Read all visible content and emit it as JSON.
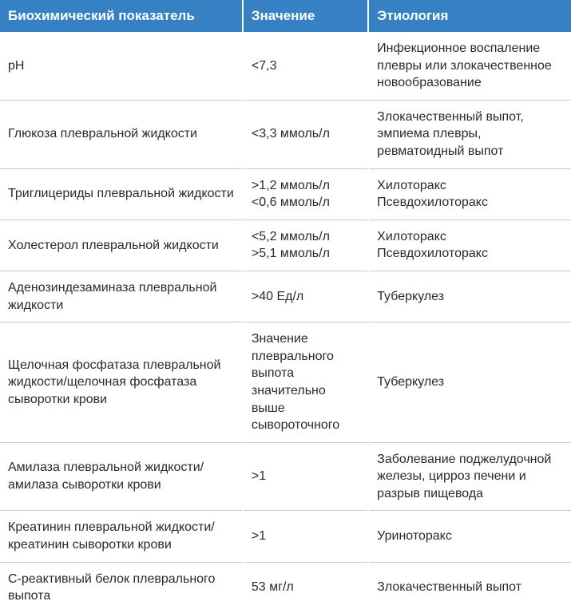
{
  "table": {
    "type": "table",
    "header_bg": "#3681c3",
    "header_text_color": "#ffffff",
    "border_color": "#c9c9c9",
    "text_color": "#2a2a2a",
    "font_size_header": 17,
    "font_size_body": 16,
    "columns": [
      {
        "label": "Биохимический показатель",
        "width": "42.5%"
      },
      {
        "label": "Значение",
        "width": "22%"
      },
      {
        "label": "Этиология",
        "width": "35.5%"
      }
    ],
    "rows": [
      {
        "indicator": "pH",
        "value": "<7,3",
        "etiology": "Инфекционное воспаление плевры или злокачественное новообразование"
      },
      {
        "indicator": "Глюкоза плевральной жидкости",
        "value": "<3,3 ммоль/л",
        "etiology": "Злокачественный выпот, эмпиема плевры, ревматоидный выпот"
      },
      {
        "indicator": "Триглицериды плевральной жидкости",
        "value": ">1,2 ммоль/л\n<0,6 ммоль/л",
        "etiology": "Хилоторакс\nПсевдохилоторакс"
      },
      {
        "indicator": "Холестерол плевральной жидкости",
        "value": "<5,2 ммоль/л\n>5,1 ммоль/л",
        "etiology": "Хилоторакс\nПсевдохилоторакс"
      },
      {
        "indicator": "Аденозиндезаминаза плевральной жидкости",
        "value": ">40 Ед/л",
        "etiology": "Туберкулез"
      },
      {
        "indicator": "Щелочная фосфатаза плевральной жидкости/щелочная фосфатаза сыворотки крови",
        "value": "Значение плеврального выпота значительно выше сывороточного",
        "etiology": "Туберкулез"
      },
      {
        "indicator": "Амилаза плевральной жидкости/амилаза сыворотки крови",
        "value": ">1",
        "etiology": "Заболевание поджелудочной железы, цирроз печени и разрыв пищевода"
      },
      {
        "indicator": "Креатинин плевральной жидкости/креатинин сыворотки крови",
        "value": ">1",
        "etiology": "Уриноторакс"
      },
      {
        "indicator": "С-реактивный белок плеврального выпота",
        "value": "53 мг/л",
        "etiology": "Злокачественный выпот"
      }
    ]
  }
}
